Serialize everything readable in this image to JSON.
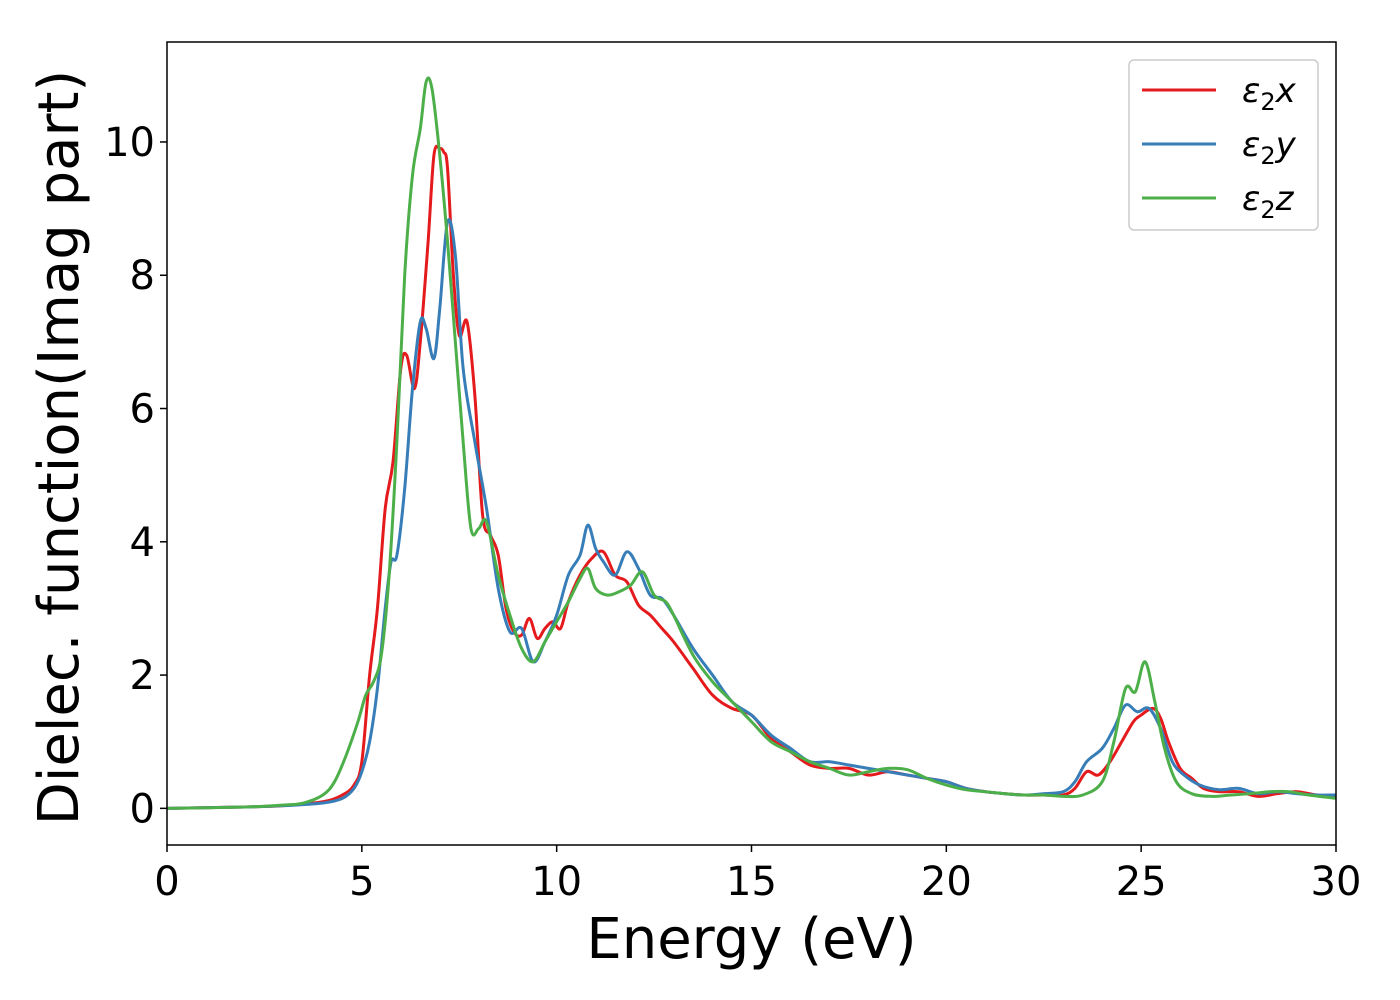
{
  "chart_data": {
    "type": "line",
    "title": "",
    "xlabel": "Energy (eV)",
    "ylabel": "Dielec. function(Imag part)",
    "xlim": [
      0,
      30
    ],
    "ylim": [
      -0.55,
      11.5
    ],
    "xticks": [
      0,
      5,
      10,
      15,
      20,
      25,
      30
    ],
    "yticks": [
      0,
      2,
      4,
      6,
      8,
      10
    ],
    "xtick_labels": [
      "0",
      "5",
      "10",
      "15",
      "20",
      "25",
      "30"
    ],
    "ytick_labels": [
      "0",
      "2",
      "4",
      "6",
      "8",
      "10"
    ],
    "grid": false,
    "legend_position": "top-right",
    "series": [
      {
        "name": "ε₂x",
        "legend_base": "ε",
        "legend_sub": "2",
        "legend_tail": "x",
        "color": "#e41a1c",
        "x": [
          0,
          2,
          3,
          4,
          4.5,
          4.8,
          5.0,
          5.2,
          5.4,
          5.6,
          5.8,
          6.0,
          6.15,
          6.35,
          6.5,
          6.7,
          6.85,
          7.0,
          7.1,
          7.2,
          7.35,
          7.5,
          7.7,
          7.9,
          8.1,
          8.3,
          8.5,
          8.7,
          8.9,
          9.1,
          9.3,
          9.5,
          9.7,
          9.9,
          10.1,
          10.3,
          10.6,
          10.9,
          11.2,
          11.5,
          11.8,
          12.1,
          12.4,
          12.7,
          13.0,
          13.5,
          14.0,
          14.5,
          15.0,
          15.5,
          16.0,
          16.5,
          17.0,
          17.5,
          18.0,
          18.5,
          19.0,
          19.5,
          20.0,
          20.5,
          21.0,
          21.5,
          22.0,
          22.5,
          23.0,
          23.3,
          23.6,
          23.9,
          24.2,
          24.5,
          24.8,
          25.0,
          25.3,
          25.5,
          25.7,
          26.0,
          26.3,
          26.6,
          27.0,
          27.5,
          28.0,
          28.5,
          29.0,
          29.5,
          30.0
        ],
        "y": [
          0,
          0.02,
          0.04,
          0.1,
          0.2,
          0.35,
          0.7,
          2.0,
          3.0,
          4.5,
          5.2,
          6.6,
          6.8,
          6.3,
          7.0,
          8.5,
          9.8,
          9.9,
          9.85,
          9.6,
          8.0,
          7.1,
          7.3,
          6.2,
          4.4,
          4.1,
          3.8,
          3.0,
          2.65,
          2.6,
          2.85,
          2.55,
          2.7,
          2.8,
          2.7,
          3.1,
          3.5,
          3.75,
          3.85,
          3.5,
          3.4,
          3.05,
          2.9,
          2.7,
          2.5,
          2.1,
          1.7,
          1.5,
          1.4,
          1.05,
          0.85,
          0.65,
          0.6,
          0.6,
          0.5,
          0.55,
          0.5,
          0.45,
          0.4,
          0.3,
          0.25,
          0.22,
          0.2,
          0.2,
          0.2,
          0.3,
          0.55,
          0.5,
          0.7,
          1.0,
          1.3,
          1.4,
          1.5,
          1.35,
          1.0,
          0.6,
          0.45,
          0.3,
          0.25,
          0.25,
          0.18,
          0.22,
          0.25,
          0.2,
          0.18
        ]
      },
      {
        "name": "ε₂y",
        "legend_base": "ε",
        "legend_sub": "2",
        "legend_tail": "y",
        "color": "#377eb8",
        "x": [
          0,
          2,
          3,
          4,
          4.5,
          4.8,
          5.0,
          5.2,
          5.4,
          5.6,
          5.75,
          5.9,
          6.1,
          6.3,
          6.5,
          6.65,
          6.85,
          7.0,
          7.2,
          7.4,
          7.6,
          7.9,
          8.2,
          8.5,
          8.8,
          9.1,
          9.4,
          9.7,
          10.0,
          10.3,
          10.6,
          10.8,
          11.0,
          11.2,
          11.5,
          11.8,
          12.1,
          12.4,
          12.7,
          13.0,
          13.5,
          14.0,
          14.5,
          15.0,
          15.5,
          16.0,
          16.5,
          17.0,
          17.5,
          18.0,
          18.5,
          19.0,
          19.5,
          20.0,
          20.5,
          21.0,
          21.5,
          22.0,
          22.5,
          23.0,
          23.3,
          23.6,
          24.0,
          24.3,
          24.6,
          24.9,
          25.2,
          25.5,
          25.8,
          26.1,
          26.5,
          27.0,
          27.5,
          28.0,
          28.5,
          29.0,
          29.5,
          30.0
        ],
        "y": [
          0,
          0.02,
          0.04,
          0.08,
          0.15,
          0.3,
          0.55,
          1.0,
          1.8,
          3.0,
          3.7,
          3.8,
          4.8,
          6.3,
          7.3,
          7.2,
          6.75,
          7.5,
          8.8,
          8.3,
          6.6,
          5.5,
          4.5,
          3.3,
          2.65,
          2.7,
          2.2,
          2.5,
          2.9,
          3.5,
          3.8,
          4.25,
          3.9,
          3.7,
          3.5,
          3.85,
          3.6,
          3.2,
          3.15,
          2.9,
          2.4,
          2.0,
          1.6,
          1.4,
          1.1,
          0.9,
          0.7,
          0.7,
          0.65,
          0.6,
          0.55,
          0.5,
          0.45,
          0.4,
          0.3,
          0.25,
          0.22,
          0.2,
          0.22,
          0.25,
          0.4,
          0.7,
          0.9,
          1.2,
          1.55,
          1.45,
          1.5,
          1.2,
          0.7,
          0.5,
          0.35,
          0.28,
          0.3,
          0.22,
          0.25,
          0.22,
          0.2,
          0.2
        ]
      },
      {
        "name": "ε₂z",
        "legend_base": "ε",
        "legend_sub": "2",
        "legend_tail": "z",
        "color": "#4daf4a",
        "x": [
          0,
          2,
          3,
          3.5,
          4.0,
          4.3,
          4.6,
          4.9,
          5.1,
          5.3,
          5.5,
          5.7,
          5.9,
          6.1,
          6.3,
          6.5,
          6.65,
          6.8,
          7.0,
          7.2,
          7.4,
          7.6,
          7.8,
          8.0,
          8.2,
          8.5,
          8.8,
          9.1,
          9.4,
          9.7,
          10.0,
          10.3,
          10.6,
          10.8,
          11.0,
          11.3,
          11.6,
          11.9,
          12.2,
          12.5,
          12.8,
          13.0,
          13.5,
          14.0,
          14.5,
          15.0,
          15.5,
          16.0,
          16.5,
          17.0,
          17.5,
          18.0,
          18.5,
          19.0,
          19.5,
          20.0,
          20.5,
          21.0,
          21.5,
          22.0,
          22.5,
          23.0,
          23.5,
          24.0,
          24.3,
          24.6,
          24.85,
          25.1,
          25.35,
          25.6,
          25.9,
          26.3,
          26.8,
          27.3,
          27.8,
          28.3,
          28.8,
          29.3,
          30.0
        ],
        "y": [
          0,
          0.02,
          0.05,
          0.08,
          0.2,
          0.4,
          0.8,
          1.3,
          1.7,
          1.9,
          2.3,
          3.5,
          5.5,
          8.0,
          9.5,
          10.2,
          10.9,
          10.8,
          9.8,
          8.5,
          7.0,
          5.5,
          4.2,
          4.2,
          4.3,
          3.5,
          2.9,
          2.4,
          2.2,
          2.5,
          2.8,
          3.1,
          3.45,
          3.6,
          3.3,
          3.2,
          3.25,
          3.35,
          3.55,
          3.2,
          3.1,
          2.9,
          2.3,
          1.9,
          1.6,
          1.3,
          1.0,
          0.85,
          0.7,
          0.6,
          0.5,
          0.55,
          0.6,
          0.58,
          0.45,
          0.35,
          0.28,
          0.25,
          0.22,
          0.2,
          0.2,
          0.18,
          0.2,
          0.4,
          1.0,
          1.8,
          1.75,
          2.2,
          1.6,
          0.9,
          0.4,
          0.22,
          0.18,
          0.2,
          0.22,
          0.25,
          0.25,
          0.2,
          0.15
        ]
      }
    ]
  }
}
